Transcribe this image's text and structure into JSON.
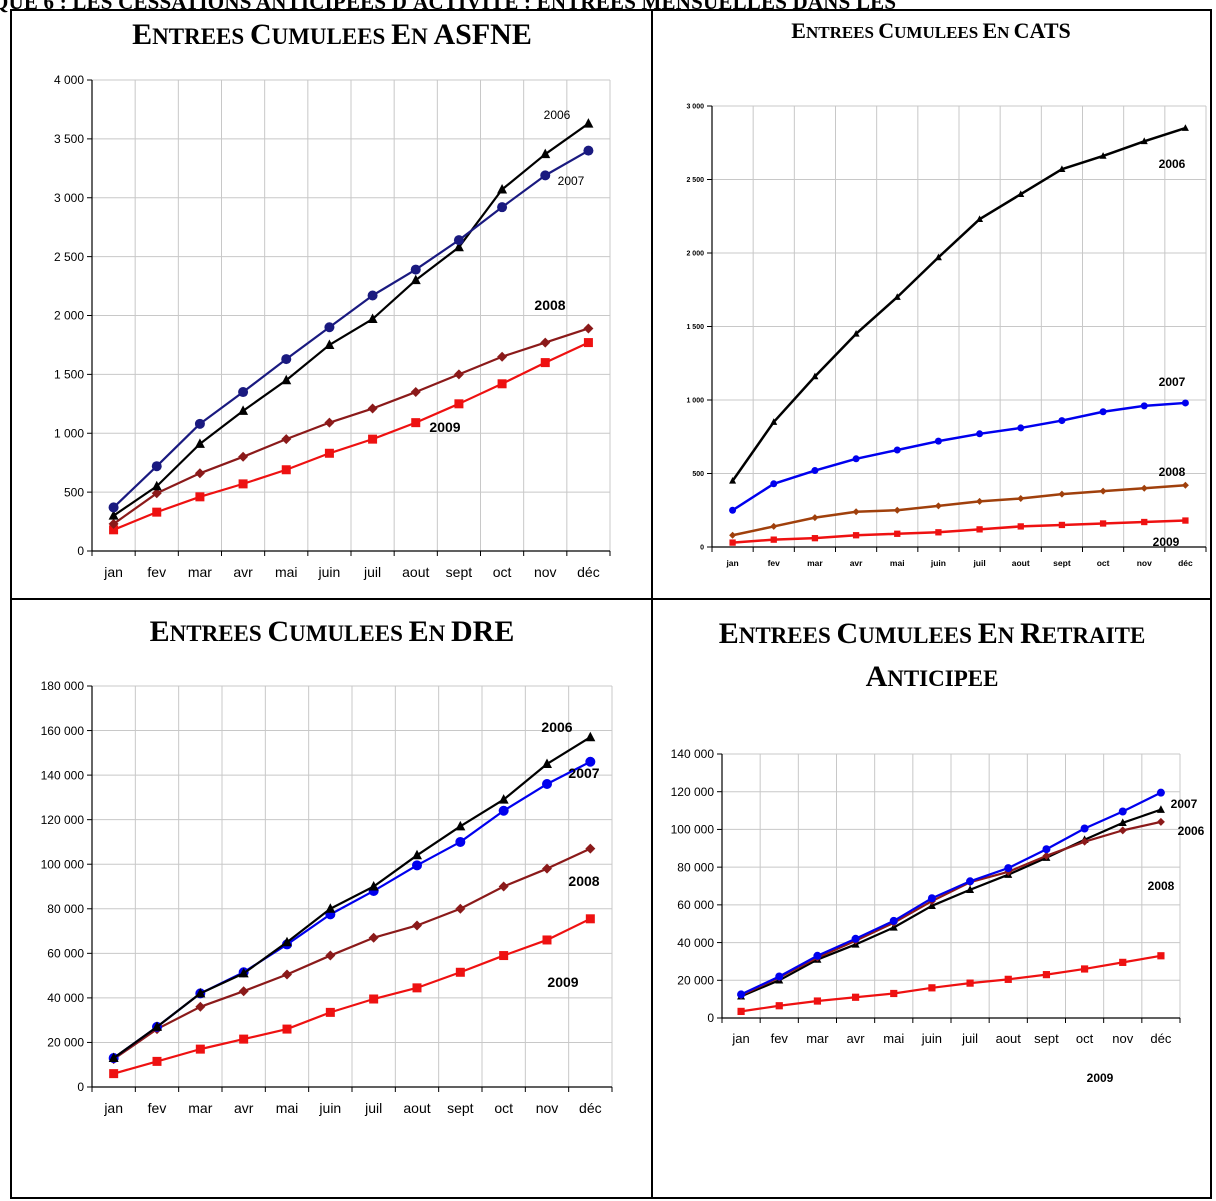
{
  "page_header": "QUE 6 : LES CESSATIONS ANTICIPEES D'ACTIVITE : ENTREES MENSUELLES DANS LES",
  "months": [
    "jan",
    "fev",
    "mar",
    "avr",
    "mai",
    "juin",
    "juil",
    "aout",
    "sept",
    "oct",
    "nov",
    "déc"
  ],
  "colors": {
    "2006": "#000000",
    "2007_dark": "#1a1a80",
    "2007": "#0000ee",
    "2008": "#8b1a1a",
    "2008_cats": "#a0400c",
    "2009": "#ee1111"
  },
  "chart_data": [
    {
      "id": "asfne",
      "type": "line",
      "title": "ENTREES CUMULEES EN ASFNE",
      "categories": [
        "jan",
        "fev",
        "mar",
        "avr",
        "mai",
        "juin",
        "juil",
        "aout",
        "sept",
        "oct",
        "nov",
        "déc"
      ],
      "ylim": [
        0,
        4000
      ],
      "yticks": [
        "0",
        "500",
        "1 000",
        "1 500",
        "2 000",
        "2 500",
        "3 000",
        "3 500",
        "4 000"
      ],
      "grid": true,
      "series": [
        {
          "name": "2006",
          "values": [
            300,
            550,
            910,
            1190,
            1450,
            1750,
            1970,
            2300,
            2580,
            3070,
            3370,
            3630
          ]
        },
        {
          "name": "2007",
          "values": [
            370,
            720,
            1080,
            1350,
            1630,
            1900,
            2170,
            2390,
            2640,
            2920,
            3190,
            3400
          ]
        },
        {
          "name": "2008",
          "values": [
            230,
            490,
            660,
            800,
            950,
            1090,
            1210,
            1350,
            1500,
            1650,
            1770,
            1890
          ]
        },
        {
          "name": "2009",
          "values": [
            180,
            330,
            460,
            570,
            690,
            830,
            950,
            1090,
            1250,
            1420,
            1600,
            1770
          ]
        }
      ]
    },
    {
      "id": "cats",
      "type": "line",
      "title": "ENTREES CUMULEES EN CATS",
      "categories": [
        "jan",
        "fev",
        "mar",
        "avr",
        "mai",
        "juin",
        "juil",
        "aout",
        "sept",
        "oct",
        "nov",
        "déc"
      ],
      "ylim": [
        0,
        3000
      ],
      "yticks": [
        "0",
        "500",
        "1 000",
        "1 500",
        "2 000",
        "2 500",
        "3 000"
      ],
      "grid": true,
      "series": [
        {
          "name": "2006",
          "values": [
            450,
            850,
            1160,
            1450,
            1700,
            1970,
            2230,
            2400,
            2570,
            2660,
            2760,
            2850
          ]
        },
        {
          "name": "2007",
          "values": [
            250,
            430,
            520,
            600,
            660,
            720,
            770,
            810,
            860,
            920,
            960,
            980
          ]
        },
        {
          "name": "2008",
          "values": [
            80,
            140,
            200,
            240,
            250,
            280,
            310,
            330,
            360,
            380,
            400,
            420
          ]
        },
        {
          "name": "2009",
          "values": [
            30,
            50,
            60,
            80,
            90,
            100,
            120,
            140,
            150,
            160,
            170,
            180
          ]
        }
      ]
    },
    {
      "id": "dre",
      "type": "line",
      "title": "ENTREES CUMULEES EN DRE",
      "categories": [
        "jan",
        "fev",
        "mar",
        "avr",
        "mai",
        "juin",
        "juil",
        "aout",
        "sept",
        "oct",
        "nov",
        "déc"
      ],
      "ylim": [
        0,
        180000
      ],
      "yticks": [
        "0",
        "20 000",
        "40 000",
        "60 000",
        "80 000",
        "100 000",
        "120 000",
        "140 000",
        "160 000",
        "180 000"
      ],
      "grid": true,
      "series": [
        {
          "name": "2006",
          "values": [
            13000,
            27000,
            42000,
            51000,
            65000,
            80000,
            90000,
            104000,
            117000,
            129000,
            145000,
            157000
          ]
        },
        {
          "name": "2007",
          "values": [
            13000,
            27000,
            42000,
            51500,
            64000,
            77500,
            88000,
            99500,
            110000,
            124000,
            136000,
            146000
          ]
        },
        {
          "name": "2008",
          "values": [
            12500,
            26000,
            36000,
            43000,
            50500,
            59000,
            67000,
            72500,
            80000,
            90000,
            98000,
            107000
          ]
        },
        {
          "name": "2009",
          "values": [
            6000,
            11500,
            17000,
            21500,
            26000,
            33500,
            39500,
            44500,
            51500,
            59000,
            66000,
            75500
          ]
        }
      ]
    },
    {
      "id": "retraite",
      "type": "line",
      "title_line1": "ENTREES CUMULEES EN RETRAITE",
      "title_line2": "ANTICIPEE",
      "categories": [
        "jan",
        "fev",
        "mar",
        "avr",
        "mai",
        "juin",
        "juil",
        "aout",
        "sept",
        "oct",
        "nov",
        "déc"
      ],
      "ylim": [
        0,
        140000
      ],
      "yticks": [
        "0",
        "20 000",
        "40 000",
        "60 000",
        "80 000",
        "100 000",
        "120 000",
        "140 000"
      ],
      "grid": true,
      "series": [
        {
          "name": "2006",
          "values": [
            11500,
            20000,
            31000,
            39000,
            48000,
            59500,
            68000,
            76000,
            85000,
            94500,
            103500,
            110500
          ]
        },
        {
          "name": "2007",
          "values": [
            12500,
            22000,
            33000,
            42000,
            51500,
            63500,
            72500,
            79500,
            89500,
            100500,
            109500,
            119500
          ]
        },
        {
          "name": "2008",
          "values": [
            12000,
            21500,
            32000,
            41000,
            50500,
            62000,
            72000,
            77500,
            86000,
            93500,
            99500,
            104000
          ]
        },
        {
          "name": "2009",
          "values": [
            3500,
            6500,
            9000,
            11000,
            13000,
            16000,
            18500,
            20500,
            23000,
            26000,
            29500,
            33000
          ]
        }
      ]
    }
  ]
}
